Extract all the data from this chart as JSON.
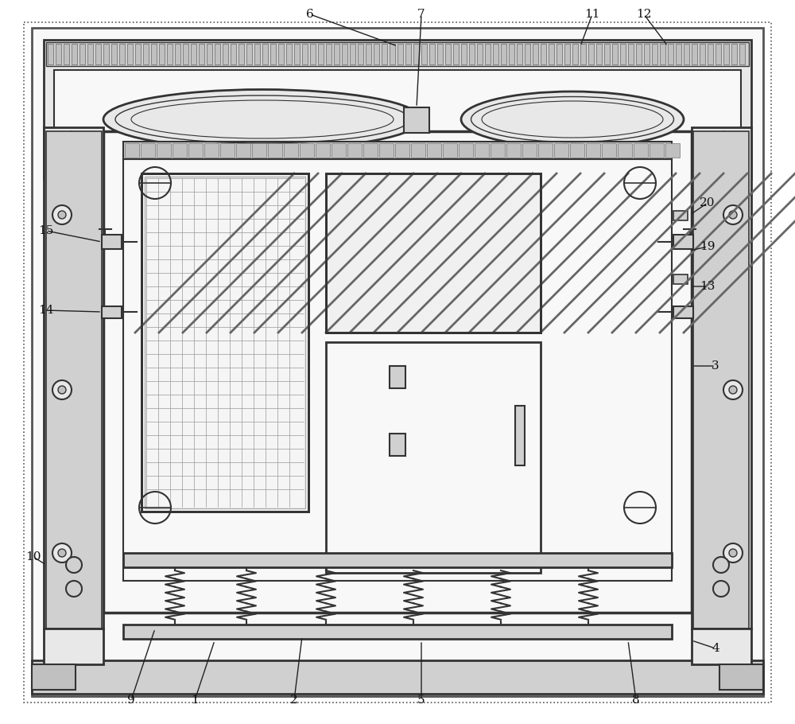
{
  "fig_width": 10.0,
  "fig_height": 9.1,
  "dpi": 100,
  "bg_color": "#ffffff",
  "lc": "#333333",
  "lc2": "#555555",
  "gray1": "#e8e8e8",
  "gray2": "#d0d0d0",
  "gray3": "#c0c0c0",
  "gray4": "#b0b0b0",
  "white": "#f8f8f8"
}
